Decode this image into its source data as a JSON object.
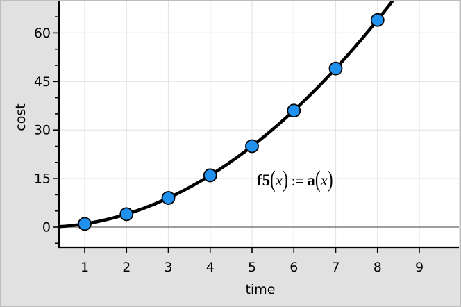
{
  "chart_data": {
    "type": "scatter",
    "title": "",
    "xlabel": "time",
    "ylabel": "cost",
    "points": {
      "x": [
        1,
        2,
        3,
        4,
        5,
        6,
        7,
        8
      ],
      "y": [
        1,
        4,
        9,
        16,
        25,
        36,
        49,
        64
      ]
    },
    "fit_curve": {
      "label": "f5(x) := a(x)",
      "expression": "y = x^2",
      "color": "#000000"
    },
    "xticks": [
      1,
      2,
      3,
      4,
      5,
      6,
      7,
      8,
      9
    ],
    "ytick_labels": [
      0,
      15,
      30,
      45,
      60
    ],
    "ytick_minor_step": 5,
    "xlim": [
      0.39,
      9.95
    ],
    "ylim": [
      -6.3,
      69.7
    ],
    "grid": true,
    "legend": "none",
    "point_fill": "#2191f0",
    "point_stroke": "#000000"
  },
  "function_label": {
    "lhs_name": "f5",
    "lhs_open": "(",
    "lhs_arg": "x",
    "lhs_close": ")",
    "op": ":=",
    "rhs_name": "a",
    "rhs_open": "(",
    "rhs_arg": "x",
    "rhs_close": ")"
  },
  "colors": {
    "margin_bg": "#e1e1e1",
    "plot_bg": "#ffffff",
    "border": "#bdbdbd",
    "gridline": "#e4e4e4",
    "zero_line": "#7d7d7d",
    "axis_line": "#000000",
    "tick_color": "#000000"
  }
}
